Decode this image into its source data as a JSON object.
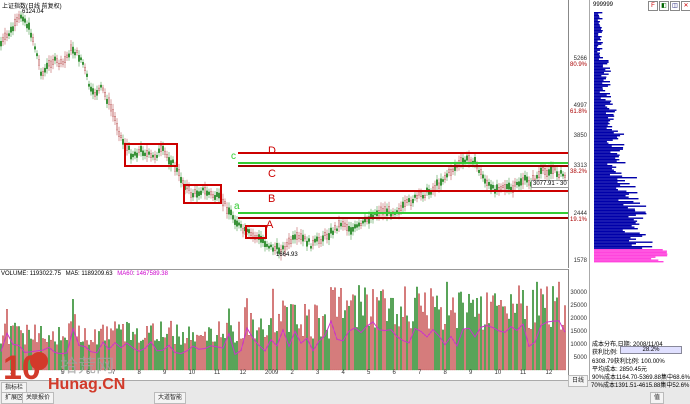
{
  "chart_title": "上证指数(日线 前复权)",
  "peak_label": "6124.04",
  "low_label": "1664.93",
  "range_label": "3077.91 - 30",
  "levels": {
    "D": "D",
    "C": "C",
    "B": "B",
    "A": "A",
    "c": "c",
    "a": "a"
  },
  "y_axis_labels": [
    {
      "value": "5266",
      "pct": "80.9%"
    },
    {
      "value": "4997",
      "pct": "61.8%"
    },
    {
      "value": "3850",
      "pct": ""
    },
    {
      "value": "3313",
      "pct": "38.2%"
    },
    {
      "value": "2444",
      "pct": "19.1%"
    },
    {
      "value": "1578",
      "pct": ""
    }
  ],
  "volume": {
    "label": "VOLUME",
    "value": "1193022.75",
    "ma5_label": "MA5",
    "ma5_value": "1189209.63",
    "ma60_label": "MA60",
    "ma60_value": "1467589.38"
  },
  "volume_axis": [
    "30000",
    "25000",
    "20000",
    "15000",
    "10000",
    "5000"
  ],
  "month_labels": [
    "3",
    "4",
    "5",
    "6",
    "7",
    "8",
    "9",
    "10",
    "11",
    "12",
    "2009",
    "2",
    "3",
    "4",
    "5",
    "6",
    "7",
    "8",
    "9",
    "10",
    "11",
    "12"
  ],
  "right_panel": {
    "code": "999999",
    "title": "成本分布,日期:",
    "date": "2008/11/04",
    "profit_label": "获利比例:",
    "profit_value": "28.2%",
    "profit_line": "6308.79获利比例: 100.00%",
    "avg_cost_label": "平均成本:",
    "avg_cost_value": "2850.45元",
    "cost90": "90%成本1164.70-5369.88集中68.6%",
    "cost70": "70%成本1391.51-4615.88集中52.6%"
  },
  "bottom_tabs": [
    "指标栏",
    "扩展区",
    "关联报价",
    "大道智能"
  ],
  "bottom_right": {
    "date_tab": "日线",
    "value_tab": "值"
  },
  "watermark": {
    "brand_num": "10",
    "brand_cn": "拾荒网",
    "brand_url": "Hunag.CN"
  },
  "colors": {
    "green": "#33cc33",
    "red": "#cc0000",
    "darkred": "#a00000",
    "bar": "#b34040",
    "vol_up": "#cc5555",
    "vol_down": "#2d8c2d",
    "chip_blue": "#0000aa",
    "chip_pink": "#ff44dd"
  }
}
